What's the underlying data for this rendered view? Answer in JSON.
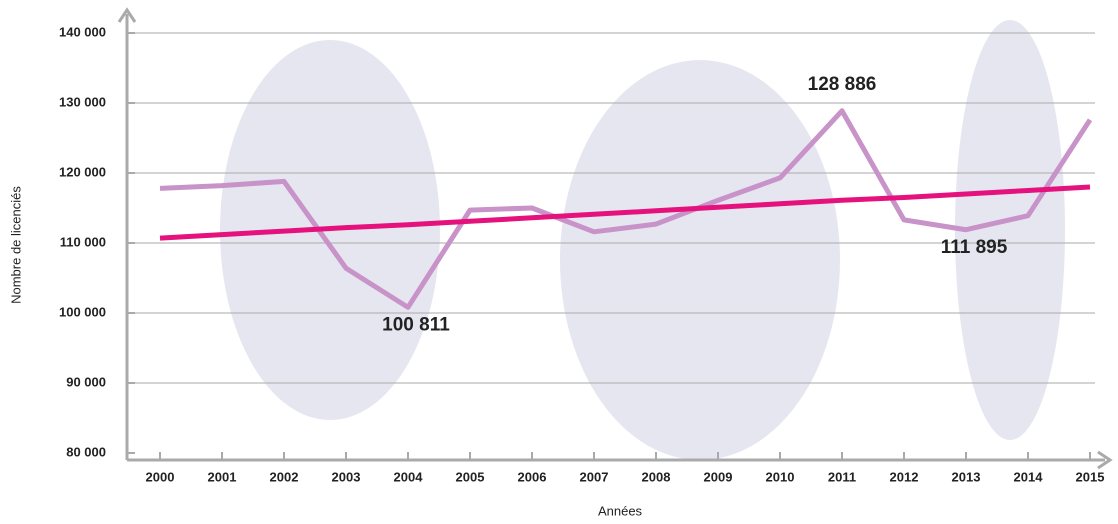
{
  "chart_data": {
    "type": "line",
    "y_label": "Nombre de licenciés",
    "x_label": "Années",
    "categories": [
      "2000",
      "2001",
      "2002",
      "2003",
      "2004",
      "2005",
      "2006",
      "2007",
      "2008",
      "2009",
      "2010",
      "2011",
      "2012",
      "2013",
      "2014",
      "2015"
    ],
    "series": [
      {
        "color": "#c893c8",
        "values": [
          117800,
          118200,
          118800,
          106400,
          100811,
          114700,
          115000,
          111600,
          112700,
          116100,
          119300,
          128886,
          113300,
          111895,
          113900,
          127600
        ],
        "value_labels": [
          null,
          null,
          null,
          null,
          "100 811",
          null,
          null,
          null,
          null,
          null,
          null,
          "128 886",
          null,
          "111 895",
          null,
          null
        ]
      },
      {
        "color": "#e5127d",
        "values": [
          110700,
          111200,
          111700,
          112200,
          112600,
          113100,
          113600,
          114100,
          114600,
          115100,
          115600,
          116100,
          116500,
          117000,
          117500,
          118000
        ]
      }
    ],
    "ylim": [
      80000,
      140000
    ],
    "yticks": [
      {
        "value": 80000,
        "label": "80 000"
      },
      {
        "value": 90000,
        "label": "90 000"
      },
      {
        "value": 100000,
        "label": "100 000"
      },
      {
        "value": 110000,
        "label": "110 000"
      },
      {
        "value": 120000,
        "label": "120 000"
      },
      {
        "value": 130000,
        "label": "130 000"
      },
      {
        "value": 140000,
        "label": "140 000"
      }
    ],
    "grid": true
  }
}
